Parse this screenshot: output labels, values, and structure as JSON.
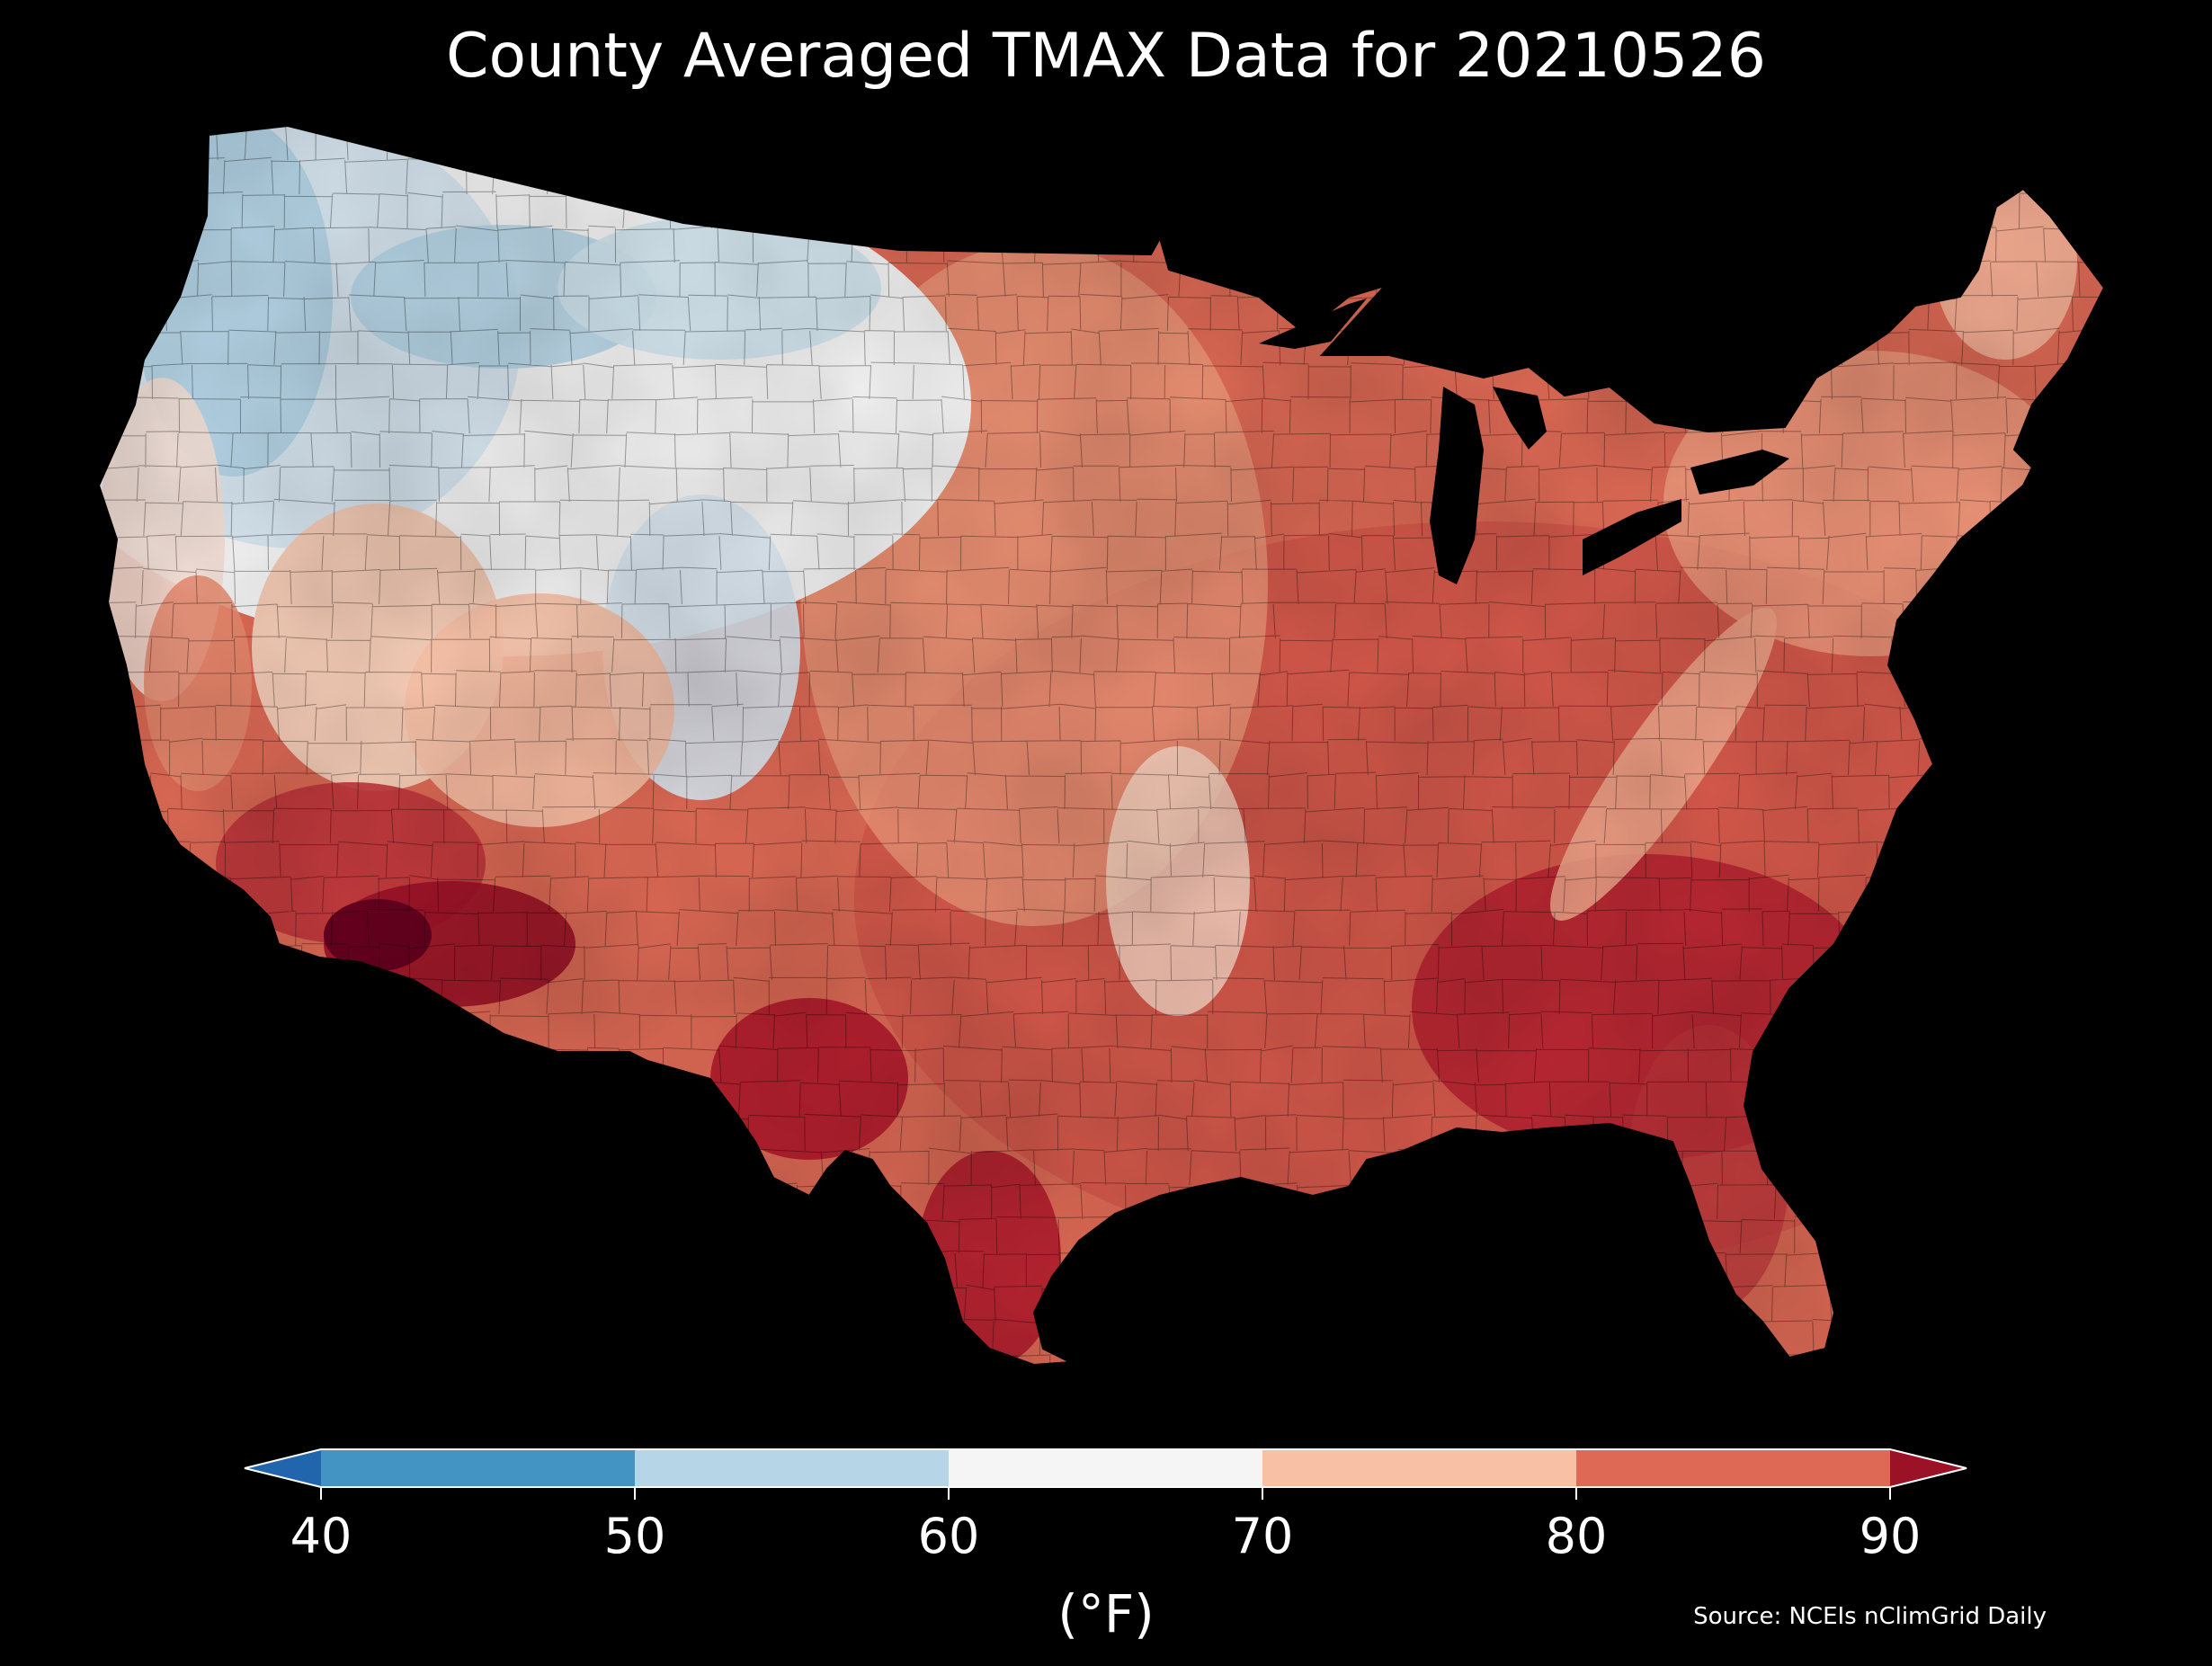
{
  "title": "County Averaged TMAX Data for 20210526",
  "units": "(°F)",
  "source": "Source: NCEIs nClimGrid Daily",
  "colorbar": {
    "ticks": [
      "40",
      "50",
      "60",
      "70",
      "80",
      "90"
    ],
    "bins": [
      {
        "from": "<40",
        "color": "#2166ac"
      },
      {
        "from": "40",
        "to": "50",
        "color": "#4393c3"
      },
      {
        "from": "50",
        "to": "60",
        "color": "#b6d6e8"
      },
      {
        "from": "60",
        "to": "70",
        "color": "#f5f5f5"
      },
      {
        "from": "70",
        "to": "80",
        "color": "#f8c1a6"
      },
      {
        "from": "80",
        "to": "90",
        "color": "#de6a55"
      },
      {
        "from": ">90",
        "color": "#9b1126"
      }
    ],
    "extend": "both"
  },
  "map": {
    "region": "Contiguous United States",
    "value": "county averaged maximum temperature (°F)",
    "background": "#000000",
    "border_color": "#000000"
  }
}
